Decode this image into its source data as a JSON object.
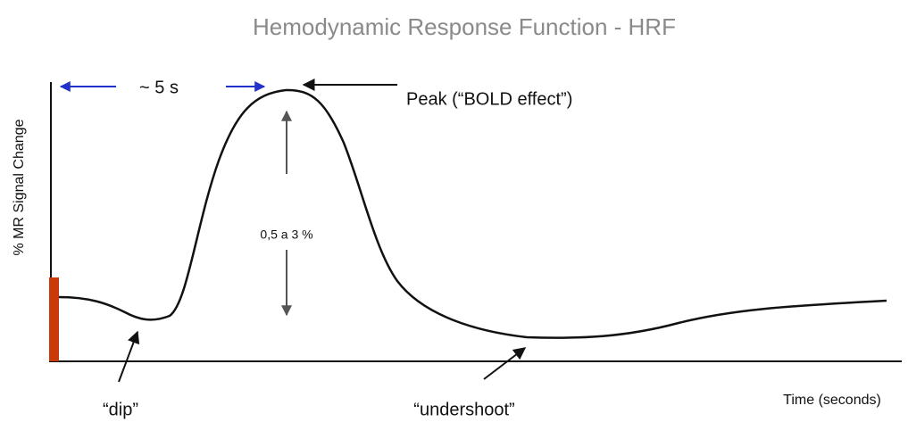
{
  "title": "Hemodynamic Response Function - HRF",
  "y_axis_label": "% MR Signal Change",
  "x_axis_label": "Time (seconds)",
  "annotations": {
    "time_to_peak": "~ 5 s",
    "peak": "Peak (“BOLD effect”)",
    "amplitude": "0,5 a 3 %",
    "dip": "“dip”",
    "undershoot": "“undershoot”"
  }
}
